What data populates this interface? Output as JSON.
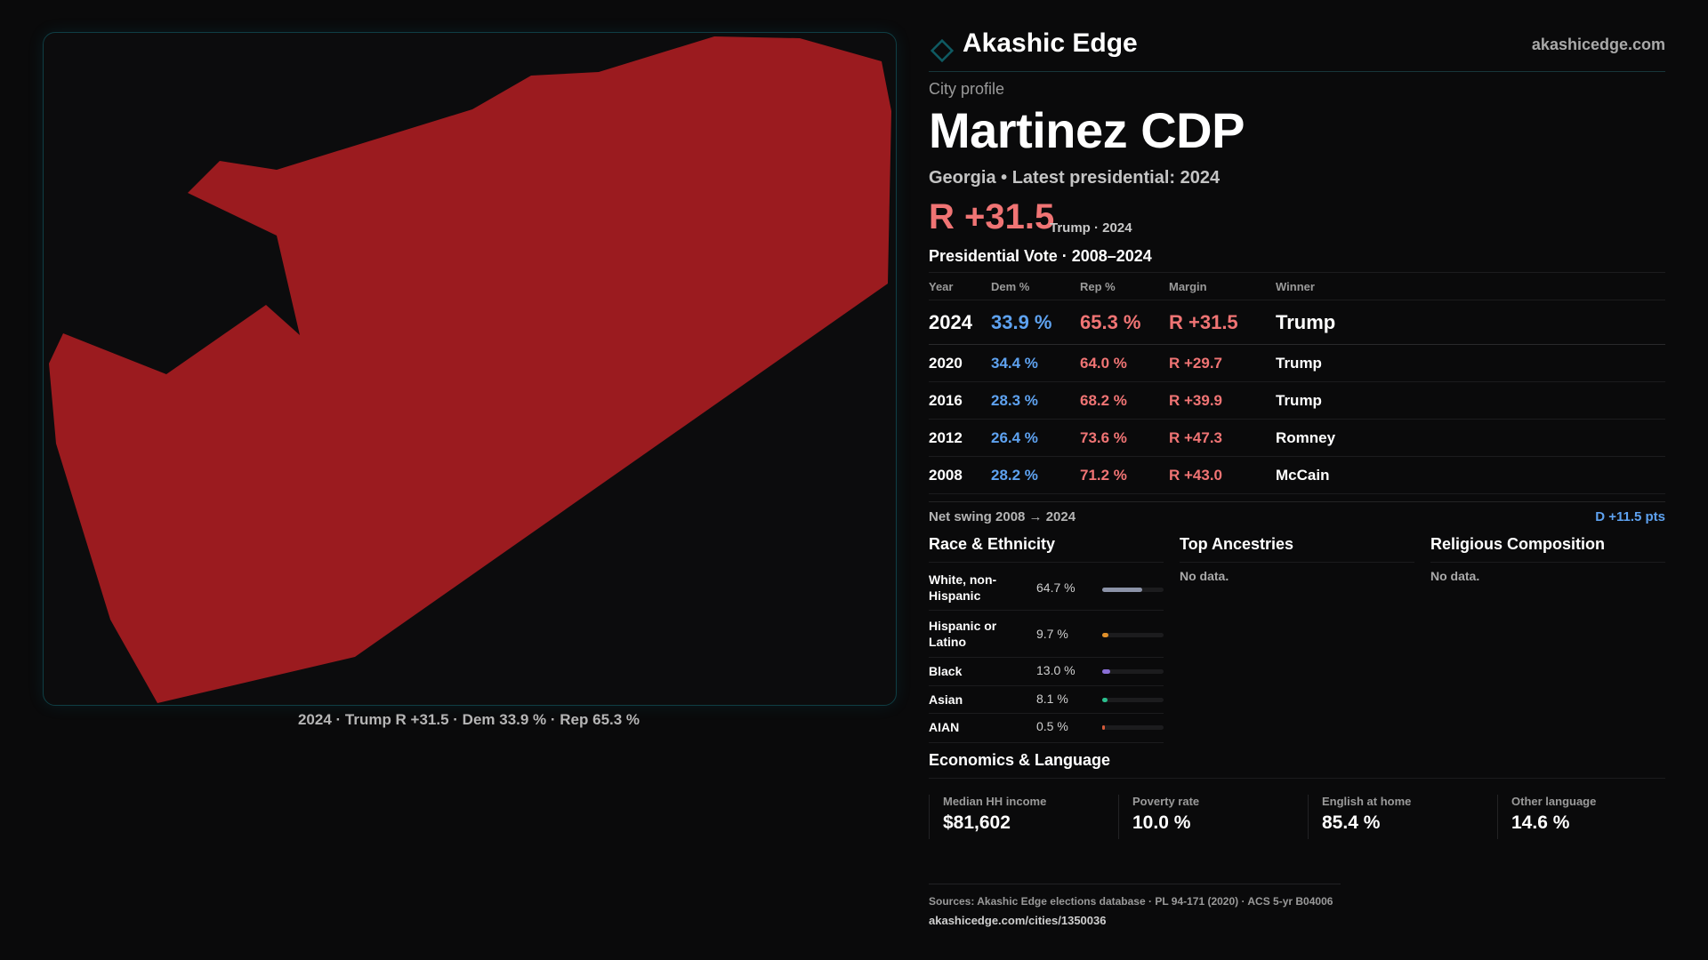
{
  "map": {
    "caption": "2024 · Trump R +31.5 · Dem 33.9 % · Rep 65.3 %",
    "fill_color": "#9b1b1f"
  },
  "brand": {
    "name": "Akashic Edge",
    "url": "akashicedge.com",
    "icon": "diamond-icon",
    "accent": "#0f5a62"
  },
  "profile": {
    "eyebrow": "City profile",
    "title": "Martinez CDP",
    "subtitle": "Georgia • Latest presidential: 2024",
    "margin": "R +31.5",
    "margin_sub": "Trump · 2024"
  },
  "presidential": {
    "section_title": "Presidential Vote · 2008–2024",
    "headers": [
      "Year",
      "Dem %",
      "Rep %",
      "Margin",
      "Winner"
    ],
    "rows": [
      {
        "year": "2024",
        "dem": "33.9 %",
        "rep": "65.3 %",
        "margin": "R +31.5",
        "winner": "Trump"
      },
      {
        "year": "2020",
        "dem": "34.4 %",
        "rep": "64.0 %",
        "margin": "R +29.7",
        "winner": "Trump"
      },
      {
        "year": "2016",
        "dem": "28.3 %",
        "rep": "68.2 %",
        "margin": "R +39.9",
        "winner": "Trump"
      },
      {
        "year": "2012",
        "dem": "26.4 %",
        "rep": "73.6 %",
        "margin": "R +47.3",
        "winner": "Romney"
      },
      {
        "year": "2008",
        "dem": "28.2 %",
        "rep": "71.2 %",
        "margin": "R +43.0",
        "winner": "McCain"
      }
    ],
    "swing_label": "Net swing 2008 → 2024",
    "swing_value": "D +11.5 pts"
  },
  "race": {
    "title": "Race & Ethnicity",
    "rows": [
      {
        "label": "White, non-Hispanic",
        "value": "64.7 %",
        "fraction": 0.647,
        "color": "#8c93a8"
      },
      {
        "label": "Hispanic or Latino",
        "value": "9.7 %",
        "fraction": 0.097,
        "color": "#e0902a"
      },
      {
        "label": "Black",
        "value": "13.0 %",
        "fraction": 0.13,
        "color": "#8a6fd6"
      },
      {
        "label": "Asian",
        "value": "8.1 %",
        "fraction": 0.081,
        "color": "#2bbf8e"
      },
      {
        "label": "AIAN",
        "value": "0.5 %",
        "fraction": 0.005,
        "color": "#d45a3a"
      }
    ]
  },
  "ancestries": {
    "title": "Top Ancestries",
    "empty": "No data."
  },
  "religion": {
    "title": "Religious Composition",
    "empty": "No data."
  },
  "economics": {
    "title": "Economics & Language",
    "cards": [
      {
        "label": "Median HH income",
        "value": "$81,602"
      },
      {
        "label": "Poverty rate",
        "value": "10.0 %"
      },
      {
        "label": "English at home",
        "value": "85.4 %"
      },
      {
        "label": "Other language",
        "value": "14.6 %"
      }
    ]
  },
  "sources": {
    "text": "Sources: Akashic Edge elections database · PL 94-171 (2020) · ACS 5-yr B04006",
    "url": "akashicedge.com/cities/1350036"
  }
}
